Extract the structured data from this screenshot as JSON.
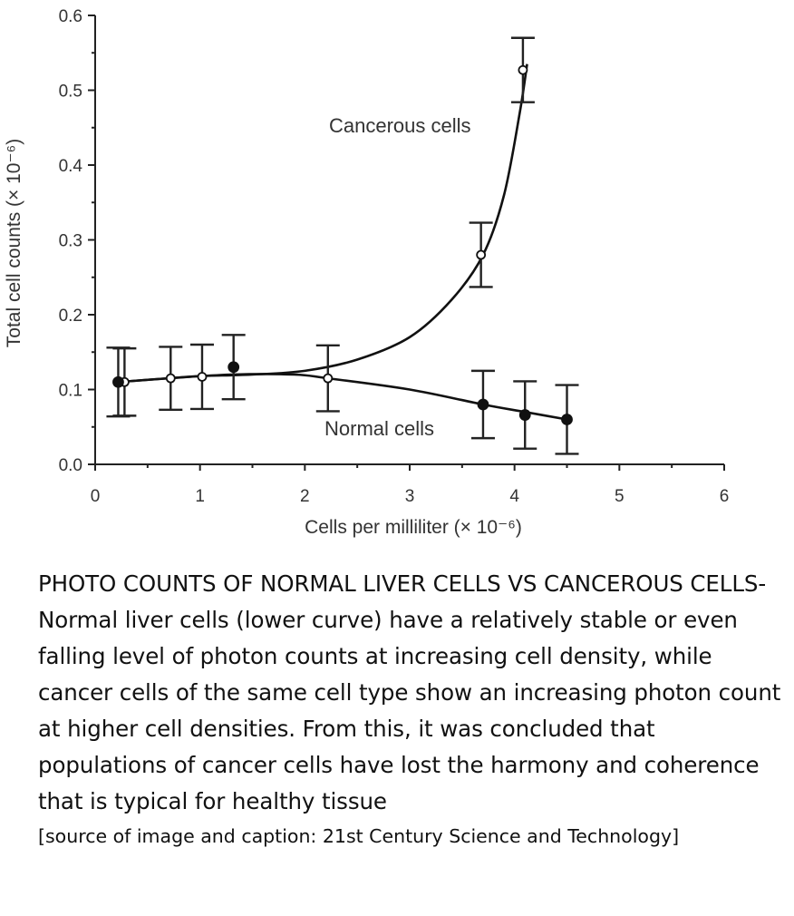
{
  "chart_data": {
    "type": "line",
    "xlabel": "Cells per milliliter (× 10⁻⁶)",
    "ylabel": "Total cell counts (× 10⁻⁶)",
    "xlim": [
      0,
      6
    ],
    "ylim": [
      0,
      0.6
    ],
    "x_ticks": [
      "0",
      "1",
      "2",
      "3",
      "4",
      "5",
      "6"
    ],
    "y_ticks": [
      "0.0",
      "0.1",
      "0.2",
      "0.3",
      "0.4",
      "0.5",
      "0.6"
    ],
    "grid": false,
    "series": [
      {
        "name": "Cancerous cells",
        "marker": "open-circle",
        "points": [
          {
            "x": 0.28,
            "y": 0.11,
            "err": 0.045
          },
          {
            "x": 0.72,
            "y": 0.115,
            "err": 0.042
          },
          {
            "x": 1.02,
            "y": 0.117,
            "err": 0.043
          },
          {
            "x": 2.22,
            "y": 0.115,
            "err": 0.044
          },
          {
            "x": 3.68,
            "y": 0.28,
            "err": 0.043
          },
          {
            "x": 4.08,
            "y": 0.527,
            "err": 0.043
          }
        ],
        "curve": [
          [
            0.22,
            0.11
          ],
          [
            0.7,
            0.115
          ],
          [
            1.0,
            0.118
          ],
          [
            1.5,
            0.12
          ],
          [
            2.0,
            0.125
          ],
          [
            2.5,
            0.14
          ],
          [
            3.0,
            0.17
          ],
          [
            3.4,
            0.22
          ],
          [
            3.7,
            0.28
          ],
          [
            3.9,
            0.36
          ],
          [
            4.05,
            0.47
          ],
          [
            4.12,
            0.535
          ]
        ]
      },
      {
        "name": "Normal cells",
        "marker": "filled-circle",
        "points": [
          {
            "x": 0.22,
            "y": 0.11,
            "err": 0.046
          },
          {
            "x": 1.32,
            "y": 0.13,
            "err": 0.043
          },
          {
            "x": 3.7,
            "y": 0.08,
            "err": 0.045
          },
          {
            "x": 4.1,
            "y": 0.066,
            "err": 0.045
          },
          {
            "x": 4.5,
            "y": 0.06,
            "err": 0.046
          }
        ],
        "curve": [
          [
            0.22,
            0.11
          ],
          [
            0.7,
            0.115
          ],
          [
            1.3,
            0.12
          ],
          [
            1.9,
            0.12
          ],
          [
            2.22,
            0.115
          ],
          [
            3.0,
            0.1
          ],
          [
            3.7,
            0.08
          ],
          [
            4.1,
            0.07
          ],
          [
            4.5,
            0.06
          ]
        ]
      }
    ]
  },
  "caption": {
    "text": "PHOTO COUNTS OF NORMAL LIVER CELLS VS CANCEROUS CELLS- Normal liver cells (lower curve) have a relatively stable or even falling level of photon counts at increasing cell density, while cancer cells of the same cell type show an increasing photon count at higher cell densities. From this, it was concluded that populations of cancer cells have lost the harmony and coherence that is typical for healthy tissue",
    "source": "[source of image and caption: 21st Century Science and Technology]"
  }
}
